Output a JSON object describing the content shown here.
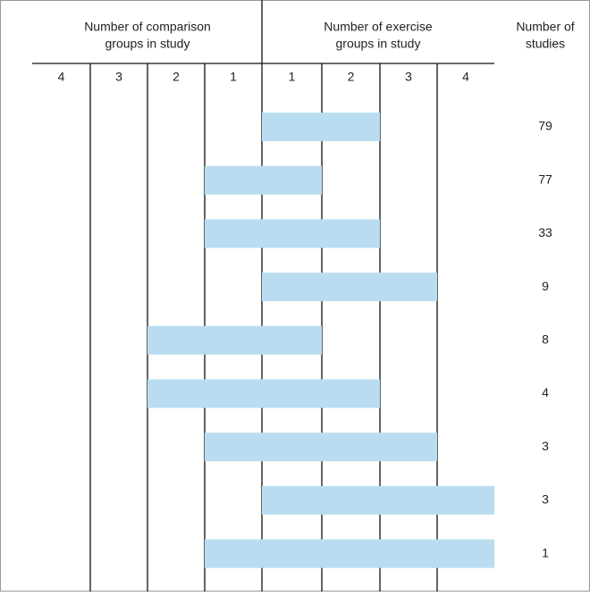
{
  "header": {
    "comparison_title": [
      "Number of comparison",
      "groups in study"
    ],
    "exercise_title": [
      "Number of exercise",
      "groups in study"
    ],
    "studies_title": [
      "Number of",
      "studies"
    ],
    "comparison_columns": [
      4,
      3,
      2,
      1
    ],
    "exercise_columns": [
      1,
      2,
      3,
      4
    ]
  },
  "rows": [
    {
      "comparison_groups": 0,
      "exercise_groups": 2,
      "studies": 79
    },
    {
      "comparison_groups": 1,
      "exercise_groups": 1,
      "studies": 77
    },
    {
      "comparison_groups": 1,
      "exercise_groups": 2,
      "studies": 33
    },
    {
      "comparison_groups": 0,
      "exercise_groups": 3,
      "studies": 9
    },
    {
      "comparison_groups": 2,
      "exercise_groups": 1,
      "studies": 8
    },
    {
      "comparison_groups": 2,
      "exercise_groups": 2,
      "studies": 4
    },
    {
      "comparison_groups": 1,
      "exercise_groups": 3,
      "studies": 3
    },
    {
      "comparison_groups": 0,
      "exercise_groups": 4,
      "studies": 3
    },
    {
      "comparison_groups": 1,
      "exercise_groups": 4,
      "studies": 1
    }
  ]
}
